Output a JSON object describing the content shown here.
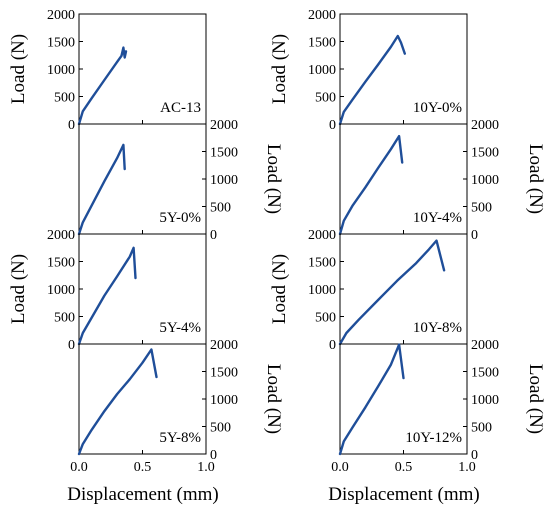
{
  "chart_data": {
    "type": "line",
    "line_color": "#1f4e99",
    "shared_xlabel": "Displacement (mm)",
    "shared_ylabel": "Load (N)",
    "xlim": [
      0,
      1.0
    ],
    "xticks": [
      "0.0",
      "0.5",
      "1.0"
    ],
    "ylim": [
      0,
      2000
    ],
    "yticks": [
      "0",
      "500",
      "1000",
      "1500",
      "2000"
    ],
    "panels": [
      {
        "label": "AC-13",
        "x": [
          0,
          0.03,
          0.1,
          0.2,
          0.3,
          0.335,
          0.35,
          0.36,
          0.37
        ],
        "y": [
          0,
          230,
          470,
          800,
          1130,
          1240,
          1390,
          1210,
          1320
        ]
      },
      {
        "label": "10Y-0%",
        "x": [
          0,
          0.03,
          0.1,
          0.2,
          0.3,
          0.4,
          0.455,
          0.48,
          0.51
        ],
        "y": [
          0,
          220,
          450,
          770,
          1080,
          1400,
          1600,
          1480,
          1280
        ]
      },
      {
        "label": "5Y-0%",
        "x": [
          0,
          0.03,
          0.1,
          0.2,
          0.3,
          0.35,
          0.36
        ],
        "y": [
          0,
          210,
          520,
          960,
          1380,
          1620,
          1180
        ]
      },
      {
        "label": "10Y-4%",
        "x": [
          0,
          0.03,
          0.1,
          0.2,
          0.3,
          0.4,
          0.465,
          0.49
        ],
        "y": [
          0,
          240,
          520,
          850,
          1200,
          1540,
          1780,
          1300
        ]
      },
      {
        "label": "5Y-4%",
        "x": [
          0,
          0.03,
          0.1,
          0.2,
          0.3,
          0.4,
          0.43,
          0.445
        ],
        "y": [
          0,
          200,
          480,
          880,
          1230,
          1590,
          1750,
          1200
        ]
      },
      {
        "label": "10Y-8%",
        "x": [
          0,
          0.05,
          0.15,
          0.3,
          0.45,
          0.6,
          0.7,
          0.76,
          0.82
        ],
        "y": [
          0,
          200,
          450,
          800,
          1150,
          1470,
          1720,
          1880,
          1340
        ]
      },
      {
        "label": "5Y-8%",
        "x": [
          0,
          0.03,
          0.1,
          0.2,
          0.3,
          0.4,
          0.5,
          0.57,
          0.61
        ],
        "y": [
          0,
          180,
          440,
          780,
          1090,
          1360,
          1660,
          1900,
          1400
        ]
      },
      {
        "label": "10Y-12%",
        "x": [
          0,
          0.03,
          0.1,
          0.2,
          0.3,
          0.4,
          0.465,
          0.5
        ],
        "y": [
          0,
          230,
          490,
          850,
          1230,
          1620,
          1990,
          1380
        ]
      }
    ]
  }
}
